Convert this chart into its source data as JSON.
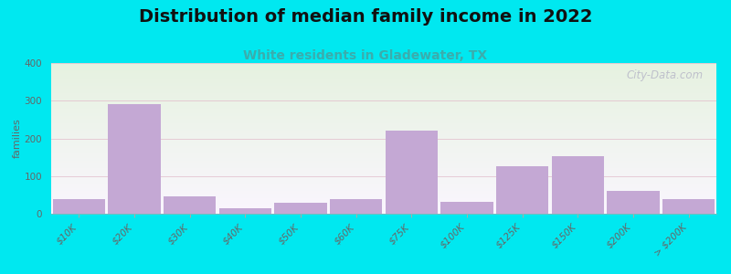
{
  "title": "Distribution of median family income in 2022",
  "subtitle": "White residents in Gladewater, TX",
  "ylabel": "families",
  "categories": [
    "$10K",
    "$20K",
    "$30K",
    "$40K",
    "$50K",
    "$60K",
    "$75K",
    "$100K",
    "$125K",
    "$150K",
    "$200K",
    "> $200K"
  ],
  "values": [
    38,
    290,
    47,
    15,
    30,
    40,
    220,
    32,
    127,
    153,
    60,
    38
  ],
  "bar_color": "#c4a8d4",
  "background_outer": "#00e8f0",
  "background_top_color": "#e6f2e0",
  "background_bottom_color": "#f5f2f8",
  "ylim": [
    0,
    400
  ],
  "yticks": [
    0,
    100,
    200,
    300,
    400
  ],
  "title_fontsize": 14,
  "subtitle_fontsize": 10,
  "subtitle_color": "#3aadad",
  "ylabel_fontsize": 8,
  "tick_fontsize": 7.5,
  "grid_color": "#e0b8c8",
  "watermark": "City-Data.com"
}
